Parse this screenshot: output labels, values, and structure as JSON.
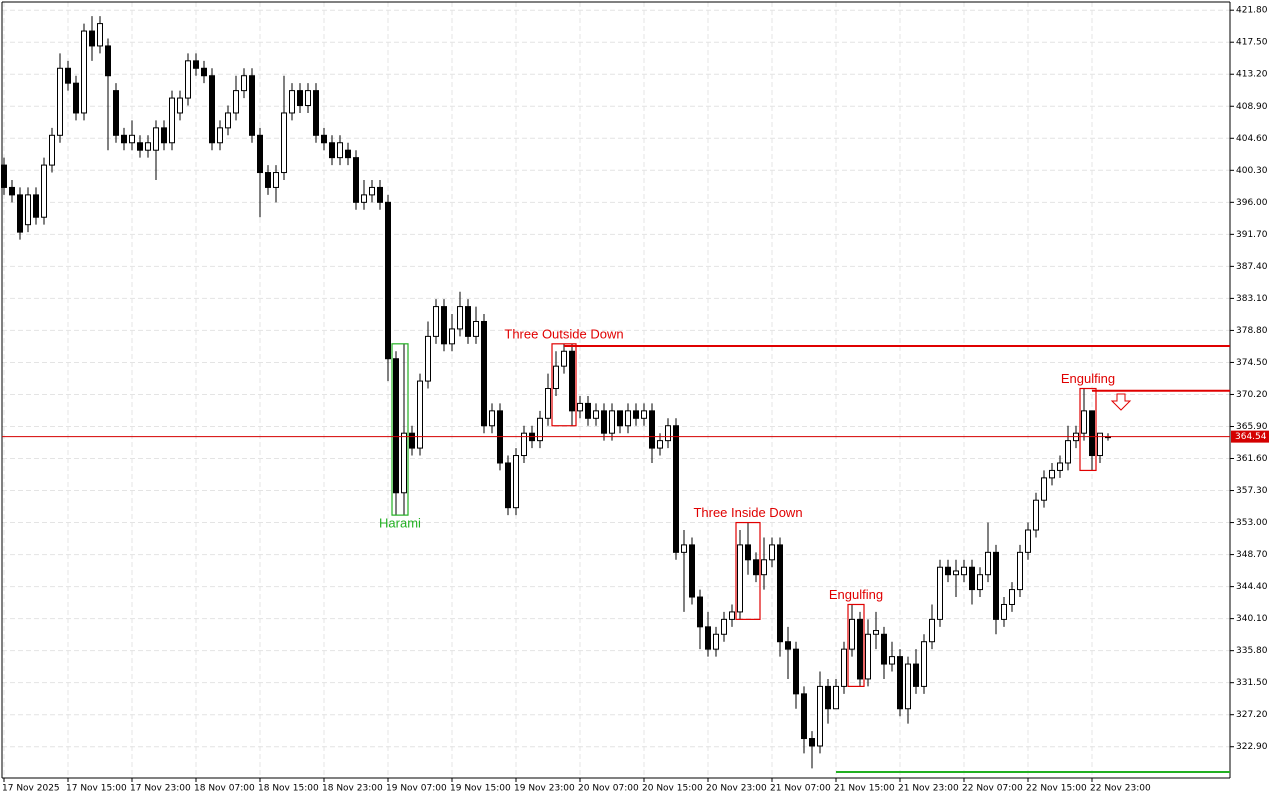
{
  "chart_data": {
    "type": "candlestick",
    "ylim": [
      318.7,
      422.9
    ],
    "yticks": [
      {
        "value": 421.8,
        "label": "421.80"
      },
      {
        "value": 417.5,
        "label": "417.50"
      },
      {
        "value": 413.2,
        "label": "413.20"
      },
      {
        "value": 408.9,
        "label": "408.90"
      },
      {
        "value": 404.6,
        "label": "404.60"
      },
      {
        "value": 400.3,
        "label": "400.30"
      },
      {
        "value": 396,
        "label": "396.00"
      },
      {
        "value": 391.7,
        "label": "391.70"
      },
      {
        "value": 387.4,
        "label": "387.40"
      },
      {
        "value": 383.1,
        "label": "383.10"
      },
      {
        "value": 378.8,
        "label": "378.80"
      },
      {
        "value": 374.5,
        "label": "374.50"
      },
      {
        "value": 370.2,
        "label": "370.20"
      },
      {
        "value": 365.9,
        "label": "365.90"
      },
      {
        "value": 361.6,
        "label": "361.60"
      },
      {
        "value": 357.3,
        "label": "357.30"
      },
      {
        "value": 353,
        "label": "353.00"
      },
      {
        "value": 348.7,
        "label": "348.70"
      },
      {
        "value": 344.4,
        "label": "344.40"
      },
      {
        "value": 340.1,
        "label": "340.10"
      },
      {
        "value": 335.8,
        "label": "335.80"
      },
      {
        "value": 331.5,
        "label": "331.50"
      },
      {
        "value": 327.2,
        "label": "327.20"
      },
      {
        "value": 322.9,
        "label": "322.90"
      }
    ],
    "grid": true,
    "bull_color": "#ffffff",
    "bear_color": "#000000",
    "last_price": 364.54,
    "last_price_color": "#d40000",
    "categories": [
      "17 Nov 2025",
      null,
      null,
      null,
      null,
      null,
      null,
      null,
      "17 Nov 15:00",
      null,
      null,
      null,
      null,
      null,
      null,
      null,
      "17 Nov 23:00",
      null,
      null,
      null,
      null,
      null,
      null,
      null,
      "18 Nov 07:00",
      null,
      null,
      null,
      null,
      null,
      null,
      null,
      "18 Nov 15:00",
      null,
      null,
      null,
      null,
      null,
      null,
      null,
      "18 Nov 23:00",
      null,
      null,
      null,
      null,
      null,
      null,
      null,
      "19 Nov 07:00",
      null,
      null,
      null,
      null,
      null,
      null,
      null,
      "19 Nov 15:00",
      null,
      null,
      null,
      null,
      null,
      null,
      null,
      "19 Nov 23:00",
      null,
      null,
      null,
      null,
      null,
      null,
      null,
      "20 Nov 07:00",
      null,
      null,
      null,
      null,
      null,
      null,
      null,
      "20 Nov 15:00",
      null,
      null,
      null,
      null,
      null,
      null,
      null,
      "20 Nov 23:00",
      null,
      null,
      null,
      null,
      null,
      null,
      null,
      "21 Nov 07:00",
      null,
      null,
      null,
      null,
      null,
      null,
      null,
      "21 Nov 15:00",
      null,
      null,
      null,
      null,
      null,
      null,
      null,
      "21 Nov 23:00",
      null,
      null,
      null,
      null,
      null,
      null,
      null,
      "22 Nov 07:00",
      null,
      null,
      null,
      null,
      null,
      null,
      null,
      "22 Nov 15:00",
      null,
      null,
      null,
      null,
      null,
      null,
      null,
      "22 Nov 23:00",
      null,
      null
    ],
    "open": [
      401,
      398,
      397,
      393,
      397,
      394,
      401,
      405,
      414,
      412,
      408,
      419,
      417,
      417,
      411,
      405,
      404,
      404,
      403,
      403,
      406,
      404,
      408,
      410,
      415,
      414,
      413,
      404,
      406,
      408,
      411,
      413,
      405,
      400,
      398,
      400,
      408,
      411,
      409,
      411,
      405,
      404,
      402,
      403,
      402,
      396,
      397,
      398,
      396,
      375,
      357,
      365,
      363,
      372,
      378,
      382,
      377,
      379,
      382,
      378,
      380,
      366,
      368,
      361,
      355,
      362,
      365,
      364,
      367,
      371,
      374,
      376,
      368,
      369,
      367,
      368,
      365,
      368,
      366,
      368,
      367,
      368,
      363,
      364,
      366,
      349,
      350,
      343,
      339,
      336,
      338,
      340,
      341,
      350,
      348,
      346,
      348,
      350,
      337,
      336,
      330,
      324,
      323,
      331,
      328,
      331,
      336,
      340,
      332,
      338,
      338,
      334,
      335,
      328,
      334,
      331,
      337,
      340,
      347,
      346,
      346,
      347,
      344,
      346,
      349,
      340,
      342,
      344,
      349,
      352,
      356,
      359,
      360,
      361,
      364,
      365,
      368,
      362,
      364.5
    ],
    "high": [
      402,
      399,
      398,
      398,
      398,
      402,
      406,
      416,
      415,
      413,
      420,
      421,
      421,
      418,
      412,
      406,
      407,
      405,
      405,
      407,
      407,
      411,
      411,
      416,
      416,
      415,
      414,
      407,
      409,
      413,
      414,
      414,
      406,
      401,
      401,
      413,
      412,
      412,
      412,
      412,
      406,
      405,
      405,
      404,
      403,
      399,
      399,
      399,
      397,
      376,
      377,
      366,
      373,
      380,
      383,
      383,
      381,
      384,
      383,
      382,
      381,
      369,
      369,
      362,
      363,
      366,
      366,
      368,
      373,
      376,
      377,
      377,
      370,
      370,
      369,
      369,
      369,
      368,
      369,
      369,
      369,
      369,
      365,
      367,
      367,
      352,
      351,
      344,
      341,
      339,
      341,
      342,
      352,
      353,
      349,
      351,
      351,
      351,
      339,
      337,
      331,
      325,
      333,
      332,
      332,
      337,
      342,
      341,
      340,
      341,
      339,
      337,
      336,
      335,
      336,
      338,
      342,
      348,
      348,
      348,
      348,
      348,
      347,
      353,
      350,
      343,
      345,
      350,
      353,
      357,
      360,
      361,
      362,
      366,
      366,
      371,
      368,
      365,
      365
    ],
    "low": [
      397,
      396,
      391,
      392,
      393,
      393,
      400,
      404,
      411,
      407,
      407,
      415,
      416,
      403,
      404,
      403,
      403,
      402,
      402,
      399,
      403,
      403,
      407,
      409,
      413,
      412,
      403,
      403,
      405,
      407,
      410,
      404,
      394,
      397,
      396,
      399,
      407,
      408,
      408,
      404,
      403,
      401,
      401,
      401,
      395,
      395,
      396,
      395,
      372,
      354,
      354,
      362,
      362,
      371,
      377,
      376,
      376,
      378,
      377,
      377,
      365,
      365,
      360,
      354,
      354,
      361,
      363,
      363,
      366,
      370,
      373,
      366,
      367,
      366,
      366,
      364,
      364,
      365,
      365,
      366,
      366,
      361,
      362,
      363,
      348,
      341,
      342,
      336,
      335,
      335,
      337,
      339,
      340,
      346,
      345,
      344,
      347,
      335,
      332,
      328,
      322,
      320,
      322,
      326,
      328,
      330,
      335,
      331,
      331,
      336,
      332,
      333,
      327,
      326,
      330,
      330,
      336,
      339,
      345,
      343,
      345,
      342,
      343,
      345,
      338,
      339,
      341,
      343,
      348,
      351,
      355,
      358,
      359,
      360,
      363,
      364,
      360,
      361,
      364
    ],
    "close": [
      398,
      397,
      392,
      397,
      394,
      401,
      405,
      414,
      412,
      408,
      419,
      417,
      420,
      413,
      405,
      404,
      405,
      403,
      404,
      406,
      404,
      410,
      410,
      415,
      414,
      413,
      404,
      406,
      408,
      411,
      413,
      405,
      400,
      398,
      400,
      408,
      411,
      409,
      411,
      405,
      404,
      402,
      404,
      402,
      396,
      397,
      398,
      396,
      375,
      357,
      365,
      363,
      372,
      378,
      382,
      377,
      379,
      382,
      378,
      380,
      366,
      368,
      361,
      355,
      362,
      365,
      364,
      367,
      371,
      374,
      376,
      368,
      369,
      367,
      368,
      365,
      368,
      366,
      368,
      367,
      368,
      363,
      364,
      366,
      349,
      350,
      343,
      339,
      336,
      338,
      340,
      341,
      350,
      348,
      346,
      348,
      350,
      337,
      336,
      330,
      324,
      323,
      331,
      328,
      331,
      336,
      340,
      332,
      338,
      338.5,
      334,
      335,
      328,
      334,
      331,
      337,
      340,
      347,
      346,
      346.5,
      347,
      344,
      346,
      349,
      340,
      342,
      344,
      349,
      352,
      356,
      359,
      360,
      361,
      364,
      365,
      368,
      362,
      365,
      364.54
    ],
    "patterns": [
      {
        "label": "Harami",
        "color": "#22b022",
        "candles": [
          49,
          50
        ],
        "label_position": "below"
      },
      {
        "label": "Three Outside Down",
        "color": "#e00000",
        "candles": [
          69,
          71
        ],
        "label_position": "above"
      },
      {
        "label": "Three Inside Down",
        "color": "#e00000",
        "candles": [
          92,
          94
        ],
        "label_position": "above"
      },
      {
        "label": "Engulfing",
        "color": "#e00000",
        "candles": [
          106,
          107
        ],
        "label_position": "above"
      },
      {
        "label": "Engulfing",
        "color": "#e00000",
        "candles": [
          135,
          136
        ],
        "label_position": "above"
      }
    ],
    "levels": [
      {
        "value": 376.7,
        "color": "#e00000",
        "from": 70
      },
      {
        "value": 370.7,
        "color": "#e00000",
        "from": 136
      },
      {
        "value": 319.5,
        "color": "#22b022",
        "from": 104
      }
    ]
  }
}
